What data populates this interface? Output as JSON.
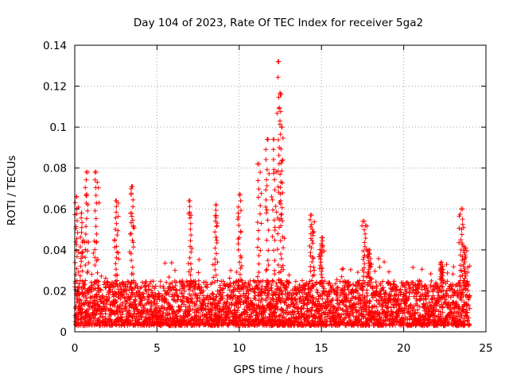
{
  "chart_data": {
    "type": "scatter",
    "title": "Day 104 of 2023, Rate Of TEC Index for receiver 5ga2",
    "xlabel": "GPS time / hours",
    "ylabel": "ROTI / TECUs",
    "xlim": [
      0,
      25
    ],
    "ylim": [
      0,
      0.14
    ],
    "xticks": [
      0,
      5,
      10,
      15,
      20,
      25
    ],
    "xtick_labels": [
      "0",
      "5",
      "10",
      "15",
      "20",
      "25"
    ],
    "yticks": [
      0,
      0.02,
      0.04,
      0.06,
      0.08,
      0.1,
      0.12,
      0.14
    ],
    "ytick_labels": [
      "0",
      "0.02",
      "0.04",
      "0.06",
      "0.08",
      "0.1",
      "0.12",
      "0.14"
    ],
    "grid": true,
    "marker": "+",
    "series": [
      {
        "name": "ROTI",
        "color": "#ff0000",
        "x_range_hours": [
          0,
          24
        ],
        "baseline_band": [
          0.003,
          0.025
        ],
        "peaks": [
          {
            "x": 0.1,
            "y": 0.066
          },
          {
            "x": 0.4,
            "y": 0.058
          },
          {
            "x": 0.7,
            "y": 0.078
          },
          {
            "x": 1.3,
            "y": 0.078
          },
          {
            "x": 2.5,
            "y": 0.064
          },
          {
            "x": 3.5,
            "y": 0.071
          },
          {
            "x": 7.0,
            "y": 0.064
          },
          {
            "x": 8.6,
            "y": 0.062
          },
          {
            "x": 10.0,
            "y": 0.067
          },
          {
            "x": 11.2,
            "y": 0.082
          },
          {
            "x": 11.7,
            "y": 0.094
          },
          {
            "x": 12.1,
            "y": 0.094
          },
          {
            "x": 12.4,
            "y": 0.132
          },
          {
            "x": 12.5,
            "y": 0.116
          },
          {
            "x": 12.6,
            "y": 0.1
          },
          {
            "x": 14.4,
            "y": 0.057
          },
          {
            "x": 15.0,
            "y": 0.046
          },
          {
            "x": 17.6,
            "y": 0.054
          },
          {
            "x": 17.9,
            "y": 0.04
          },
          {
            "x": 22.3,
            "y": 0.034
          },
          {
            "x": 23.5,
            "y": 0.06
          },
          {
            "x": 23.7,
            "y": 0.041
          }
        ]
      }
    ]
  }
}
